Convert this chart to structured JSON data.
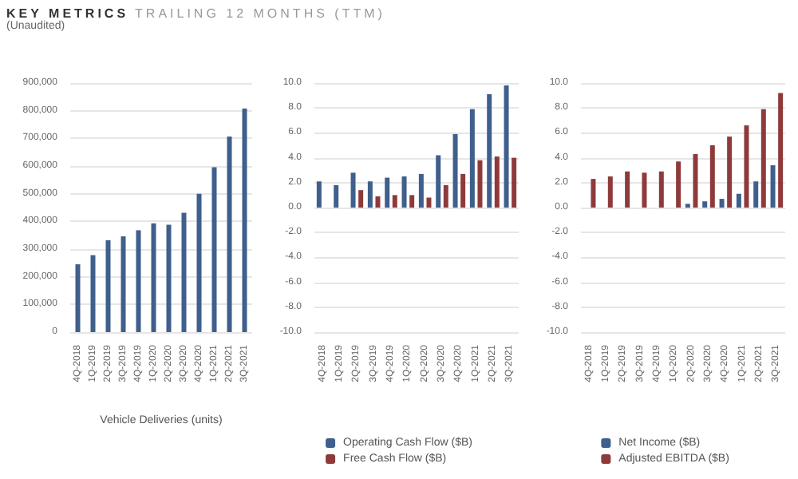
{
  "chart_data": [
    {
      "type": "bar",
      "title": "KEY METRICS",
      "subtitle": "TRAILING 12 MONTHS (TTM)",
      "annotations": [
        "(Unaudited)"
      ],
      "xlabel": "Vehicle Deliveries (units)",
      "categories": [
        "4Q-2018",
        "1Q-2019",
        "2Q-2019",
        "3Q-2019",
        "4Q-2019",
        "1Q-2020",
        "2Q-2020",
        "3Q-2020",
        "4Q-2020",
        "1Q-2021",
        "2Q-2021",
        "3Q-2021"
      ],
      "series": [
        {
          "color": "#3f5f8c",
          "values": [
            245000,
            278000,
            332000,
            346000,
            368000,
            393000,
            388000,
            431000,
            500000,
            596000,
            707000,
            808000
          ]
        }
      ],
      "ylim": [
        0,
        900000
      ],
      "yticks": [
        {
          "value": 0,
          "label": "0"
        },
        {
          "value": 100000,
          "label": "100,000"
        },
        {
          "value": 200000,
          "label": "200,000"
        },
        {
          "value": 300000,
          "label": "300,000"
        },
        {
          "value": 400000,
          "label": "400,000"
        },
        {
          "value": 500000,
          "label": "500,000"
        },
        {
          "value": 600000,
          "label": "600,000"
        },
        {
          "value": 700000,
          "label": "700,000"
        },
        {
          "value": 800000,
          "label": "800,000"
        },
        {
          "value": 900000,
          "label": "900,000"
        }
      ],
      "grid": "y"
    },
    {
      "type": "bar",
      "categories": [
        "4Q-2018",
        "1Q-2019",
        "2Q-2019",
        "3Q-2019",
        "4Q-2019",
        "1Q-2020",
        "2Q-2020",
        "3Q-2020",
        "4Q-2020",
        "1Q-2021",
        "2Q-2021",
        "3Q-2021"
      ],
      "series": [
        {
          "name": "Operating Cash Flow ($B)",
          "color": "#3f5f8c",
          "values": [
            2.1,
            1.8,
            2.8,
            2.1,
            2.4,
            2.5,
            2.7,
            4.2,
            5.9,
            7.9,
            9.1,
            9.8
          ]
        },
        {
          "name": "Free Cash Flow ($B)",
          "color": "#8e3a3a",
          "values": [
            null,
            null,
            1.4,
            0.9,
            1.0,
            1.0,
            0.8,
            1.8,
            2.7,
            3.8,
            4.1,
            4.0
          ]
        }
      ],
      "ylim": [
        -10,
        10
      ],
      "yticks": [
        {
          "value": -10,
          "label": "-10.0"
        },
        {
          "value": -8,
          "label": "-8.0"
        },
        {
          "value": -6,
          "label": "-6.0"
        },
        {
          "value": -4,
          "label": "-4.0"
        },
        {
          "value": -2,
          "label": "-2.0"
        },
        {
          "value": 0,
          "label": "0.0"
        },
        {
          "value": 2,
          "label": "2.0"
        },
        {
          "value": 4,
          "label": "4.0"
        },
        {
          "value": 6,
          "label": "6.0"
        },
        {
          "value": 8,
          "label": "8.0"
        },
        {
          "value": 10,
          "label": "10.0"
        }
      ],
      "grid": "y",
      "legend": "bottom"
    },
    {
      "type": "bar",
      "categories": [
        "4Q-2018",
        "1Q-2019",
        "2Q-2019",
        "3Q-2019",
        "4Q-2019",
        "1Q-2020",
        "2Q-2020",
        "3Q-2020",
        "4Q-2020",
        "1Q-2021",
        "2Q-2021",
        "3Q-2021"
      ],
      "series": [
        {
          "name": "Net Income ($B)",
          "color": "#3f5f8c",
          "values": [
            null,
            null,
            null,
            null,
            null,
            null,
            0.3,
            0.5,
            0.7,
            1.1,
            2.1,
            3.4
          ]
        },
        {
          "name": "Adjusted EBITDA ($B)",
          "color": "#8e3a3a",
          "values": [
            2.3,
            2.5,
            2.9,
            2.8,
            2.9,
            3.7,
            4.3,
            5.0,
            5.7,
            6.6,
            7.9,
            9.2
          ]
        }
      ],
      "ylim": [
        -10,
        10
      ],
      "yticks": [
        {
          "value": -10,
          "label": "-10.0"
        },
        {
          "value": -8,
          "label": "-8.0"
        },
        {
          "value": -6,
          "label": "-6.0"
        },
        {
          "value": -4,
          "label": "-4.0"
        },
        {
          "value": -2,
          "label": "-2.0"
        },
        {
          "value": 0,
          "label": "0.0"
        },
        {
          "value": 2,
          "label": "2.0"
        },
        {
          "value": 4,
          "label": "4.0"
        },
        {
          "value": 6,
          "label": "6.0"
        },
        {
          "value": 8,
          "label": "8.0"
        },
        {
          "value": 10,
          "label": "10.0"
        }
      ],
      "grid": "y",
      "legend": "bottom"
    }
  ]
}
